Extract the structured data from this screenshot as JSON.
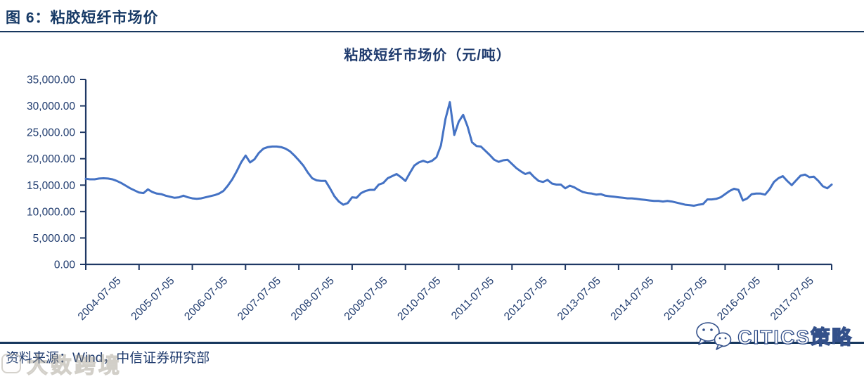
{
  "header": {
    "title": "图 6：粘胶短纤市场价"
  },
  "footer": {
    "source": "资料来源：Wind，中信证券研究部"
  },
  "watermarks": {
    "bottom_left": "大数跨境",
    "bottom_right": "CITICS策略",
    "bottom_right_icon": "wechat-icon"
  },
  "colors": {
    "navy_text": "#1f3b6e",
    "axis": "#1f3864",
    "line": "#4472c4",
    "rule": "#17375e"
  },
  "chart_data": {
    "type": "line",
    "title": "粘胶短纤市场价（元/吨）",
    "xlabel": "",
    "ylabel": "",
    "ylim": [
      0,
      35000
    ],
    "grid": "off",
    "legend": "none",
    "y_tick_values": [
      35000,
      30000,
      25000,
      20000,
      15000,
      10000,
      5000,
      0
    ],
    "y_tick_labels": [
      "35,000.00",
      "30,000.00",
      "25,000.00",
      "20,000.00",
      "15,000.00",
      "10,000.00",
      "5,000.00",
      "0.00"
    ],
    "x_labels": [
      "2004-07-05",
      "2005-07-05",
      "2006-07-05",
      "2007-07-05",
      "2008-07-05",
      "2009-07-05",
      "2010-07-05",
      "2011-07-05",
      "2012-07-05",
      "2013-07-05",
      "2014-07-05",
      "2015-07-05",
      "2016-07-05",
      "2017-07-05"
    ],
    "series": [
      {
        "name": "粘胶短纤市场价",
        "unit": "元/吨",
        "x_start": "2004-07",
        "freq": "monthly",
        "values": [
          16200,
          16100,
          16100,
          16250,
          16300,
          16250,
          16100,
          15800,
          15400,
          14900,
          14400,
          14000,
          13600,
          13500,
          14200,
          13700,
          13400,
          13300,
          13000,
          12800,
          12600,
          12700,
          13000,
          12700,
          12500,
          12400,
          12500,
          12700,
          12900,
          13100,
          13400,
          13900,
          14900,
          16100,
          17600,
          19300,
          20600,
          19300,
          19900,
          21100,
          21900,
          22200,
          22300,
          22300,
          22200,
          21900,
          21400,
          20600,
          19700,
          18700,
          17400,
          16300,
          15900,
          15800,
          15800,
          14400,
          12900,
          11900,
          11300,
          11600,
          12700,
          12600,
          13500,
          13900,
          14100,
          14100,
          15100,
          15400,
          16300,
          16700,
          17100,
          16500,
          15800,
          17300,
          18700,
          19300,
          19600,
          19300,
          19600,
          20300,
          22500,
          27500,
          30700,
          24500,
          27000,
          28300,
          26100,
          23100,
          22400,
          22300,
          21500,
          20700,
          19800,
          19400,
          19700,
          19800,
          19000,
          18200,
          17600,
          17100,
          17400,
          16500,
          15800,
          15600,
          16000,
          15300,
          15100,
          15100,
          14400,
          14900,
          14600,
          14100,
          13700,
          13500,
          13400,
          13200,
          13300,
          13000,
          12900,
          12800,
          12700,
          12600,
          12500,
          12500,
          12400,
          12300,
          12200,
          12100,
          12000,
          12000,
          11900,
          12000,
          11900,
          11700,
          11500,
          11300,
          11200,
          11100,
          11300,
          11400,
          12300,
          12300,
          12400,
          12700,
          13300,
          13900,
          14300,
          14100,
          12100,
          12500,
          13300,
          13400,
          13400,
          13200,
          14200,
          15600,
          16300,
          16700,
          15800,
          15000,
          15900,
          16800,
          17000,
          16500,
          16600,
          15800,
          14800,
          14400,
          15100
        ]
      }
    ]
  }
}
